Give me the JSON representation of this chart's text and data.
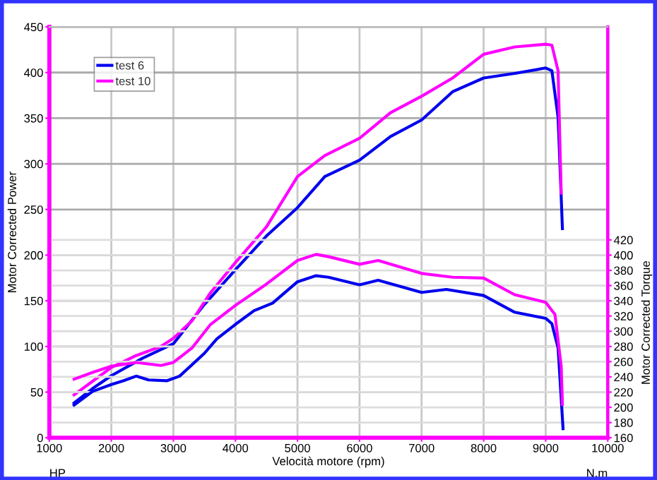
{
  "chart_data": {
    "type": "line",
    "xlabel": "Velocità motore (rpm)",
    "ylabel": "Motor Corrected Power",
    "y2label": "Motor Corrected Torque",
    "annotations": [
      "HP",
      "N.m"
    ],
    "xlim": [
      1000,
      10000
    ],
    "xticks": [
      1000,
      2000,
      3000,
      4000,
      5000,
      6000,
      7000,
      8000,
      9000,
      10000
    ],
    "ylim": [
      0,
      450
    ],
    "yticks": [
      0,
      50,
      100,
      150,
      200,
      250,
      300,
      350,
      400,
      450
    ],
    "y2lim": [
      160,
      700
    ],
    "y2ticks": [
      160,
      180,
      200,
      220,
      240,
      260,
      280,
      300,
      320,
      340,
      360,
      380,
      400,
      420
    ],
    "grid": true,
    "legend": "top left",
    "marker": "none",
    "line_style": "solid",
    "series": [
      {
        "name": "test 6",
        "color": "#0000ee",
        "x": [
          1400,
          1700,
          2000,
          2500,
          3000,
          3500,
          4000,
          4500,
          5000,
          5440,
          6000,
          6500,
          7000,
          7500,
          8000,
          8500,
          9000,
          9100,
          9200,
          9270
        ],
        "values": [
          38,
          54,
          68,
          87,
          103,
          146,
          184,
          221,
          252,
          286,
          304,
          330,
          348,
          379,
          394,
          399,
          405,
          402,
          351,
          229
        ]
      },
      {
        "name": "test 10",
        "color": "#ff00ff",
        "x": [
          1400,
          1700,
          2000,
          2400,
          2800,
          3000,
          3300,
          3600,
          4000,
          4500,
          5000,
          5440,
          6000,
          6500,
          7000,
          7500,
          8000,
          8500,
          9000,
          9100,
          9200,
          9250
        ],
        "values": [
          47,
          62,
          77,
          90,
          100,
          109,
          128,
          159,
          192,
          231,
          286,
          309,
          328,
          356,
          374,
          394,
          420,
          428,
          431,
          430,
          402,
          268
        ]
      },
      {
        "color": "#0000ee",
        "axis": "y2",
        "x": [
          1400,
          1700,
          2000,
          2200,
          2400,
          2600,
          2900,
          3100,
          3500,
          3700,
          4000,
          4300,
          4600,
          5000,
          5300,
          5500,
          6000,
          6300,
          7000,
          7400,
          8000,
          8500,
          9000,
          9100,
          9200,
          9280
        ],
        "values": [
          203,
          221,
          230,
          235,
          241,
          236,
          235,
          241,
          271,
          290,
          309,
          327,
          337,
          365,
          373,
          371,
          361,
          367,
          351,
          355,
          347,
          325,
          317,
          310,
          278,
          172
        ]
      },
      {
        "color": "#ff00ff",
        "axis": "y2",
        "x": [
          1400,
          1700,
          2000,
          2400,
          2800,
          3000,
          3300,
          3600,
          4000,
          4500,
          5000,
          5300,
          5500,
          6000,
          6300,
          7000,
          7500,
          8000,
          8500,
          9000,
          9150,
          9250,
          9270
        ],
        "values": [
          237,
          246,
          254,
          259,
          255,
          259,
          278,
          309,
          334,
          362,
          393,
          401,
          398,
          388,
          393,
          376,
          371,
          370,
          348,
          338,
          322,
          254,
          204
        ]
      }
    ]
  }
}
